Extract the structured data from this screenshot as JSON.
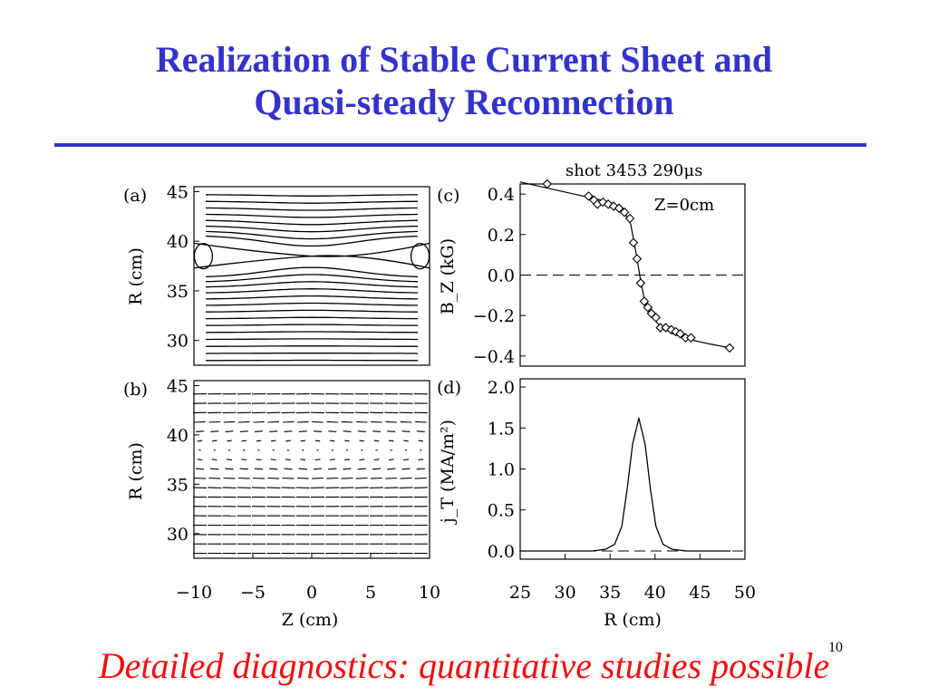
{
  "slide": {
    "title_line1": "Realization of Stable Current Sheet and",
    "title_line2": "Quasi-steady Reconnection",
    "caption": "Detailed diagnostics: quantitative studies possible",
    "slide_number": "10",
    "title_color": "#3333cc",
    "caption_color": "#ee1111"
  },
  "figure": {
    "shot_label": "shot 3453 290μs"
  },
  "chart_data": [
    {
      "panel": "(a)",
      "type": "contour",
      "xlabel": "",
      "ylabel": "R (cm)",
      "xlim": [
        -10,
        10
      ],
      "ylim": [
        27.5,
        45.5
      ],
      "x_ticks": [
        "-10",
        "-5",
        "0",
        "5",
        "10"
      ],
      "y_ticks": [
        "30",
        "35",
        "40",
        "45"
      ],
      "x_point": {
        "Z": 0,
        "R": 38.5
      }
    },
    {
      "panel": "(b)",
      "type": "vector_field",
      "xlabel": "Z (cm)",
      "ylabel": "R (cm)",
      "xlim": [
        -10,
        10
      ],
      "ylim": [
        27.5,
        45.5
      ],
      "x_tick_labels": [
        "−10",
        "−5",
        "0",
        "5",
        "10"
      ],
      "y_ticks": [
        "30",
        "35",
        "40",
        "45"
      ]
    },
    {
      "panel": "(c)",
      "type": "scatter",
      "annotation": "Z=0cm",
      "xlabel": "",
      "ylabel": "B_Z (kG)",
      "xlim": [
        25,
        50
      ],
      "ylim": [
        -0.45,
        0.45
      ],
      "y_tick_labels": [
        "0.4",
        "0.2",
        "0.0",
        "−0.2",
        "−0.4"
      ],
      "points": [
        [
          28,
          0.45
        ],
        [
          32.6,
          0.39
        ],
        [
          33.2,
          0.37
        ],
        [
          33.6,
          0.35
        ],
        [
          34.2,
          0.36
        ],
        [
          34.8,
          0.35
        ],
        [
          35.4,
          0.34
        ],
        [
          36.0,
          0.33
        ],
        [
          36.6,
          0.31
        ],
        [
          37.2,
          0.28
        ],
        [
          37.6,
          0.16
        ],
        [
          38.0,
          0.08
        ],
        [
          38.4,
          -0.04
        ],
        [
          38.8,
          -0.13
        ],
        [
          39.2,
          -0.16
        ],
        [
          39.6,
          -0.19
        ],
        [
          40.1,
          -0.21
        ],
        [
          40.6,
          -0.26
        ],
        [
          41.2,
          -0.26
        ],
        [
          41.8,
          -0.27
        ],
        [
          42.3,
          -0.28
        ],
        [
          42.8,
          -0.29
        ],
        [
          43.4,
          -0.31
        ],
        [
          44.0,
          -0.31
        ],
        [
          48.3,
          -0.36
        ]
      ],
      "fit": [
        [
          25,
          0.46
        ],
        [
          30,
          0.41
        ],
        [
          33,
          0.38
        ],
        [
          35,
          0.36
        ],
        [
          36.5,
          0.32
        ],
        [
          37.3,
          0.25
        ],
        [
          37.8,
          0.13
        ],
        [
          38.3,
          0.0
        ],
        [
          38.8,
          -0.12
        ],
        [
          39.5,
          -0.2
        ],
        [
          40.5,
          -0.25
        ],
        [
          42,
          -0.29
        ],
        [
          44,
          -0.32
        ],
        [
          46,
          -0.34
        ],
        [
          48.4,
          -0.36
        ]
      ]
    },
    {
      "panel": "(d)",
      "type": "line",
      "xlabel": "R (cm)",
      "ylabel": "j_T (MA/m²)",
      "xlim": [
        25,
        50
      ],
      "ylim": [
        -0.1,
        2.1
      ],
      "x_tick_labels": [
        "25",
        "30",
        "35",
        "40",
        "45",
        "50"
      ],
      "y_tick_labels": [
        "2.0",
        "1.5",
        "1.0",
        "0.5",
        "0.0"
      ],
      "peak": {
        "R": 38.2,
        "value": 1.62
      },
      "series": [
        {
          "values": [
            [
              25,
              0.0
            ],
            [
              33,
              0.0
            ],
            [
              34.5,
              0.02
            ],
            [
              35.5,
              0.08
            ],
            [
              36.3,
              0.3
            ],
            [
              36.9,
              0.75
            ],
            [
              37.5,
              1.3
            ],
            [
              38.2,
              1.62
            ],
            [
              38.9,
              1.3
            ],
            [
              39.5,
              0.75
            ],
            [
              40.1,
              0.3
            ],
            [
              40.9,
              0.08
            ],
            [
              41.9,
              0.02
            ],
            [
              43.5,
              0.0
            ],
            [
              48.4,
              0.0
            ]
          ]
        }
      ]
    }
  ]
}
